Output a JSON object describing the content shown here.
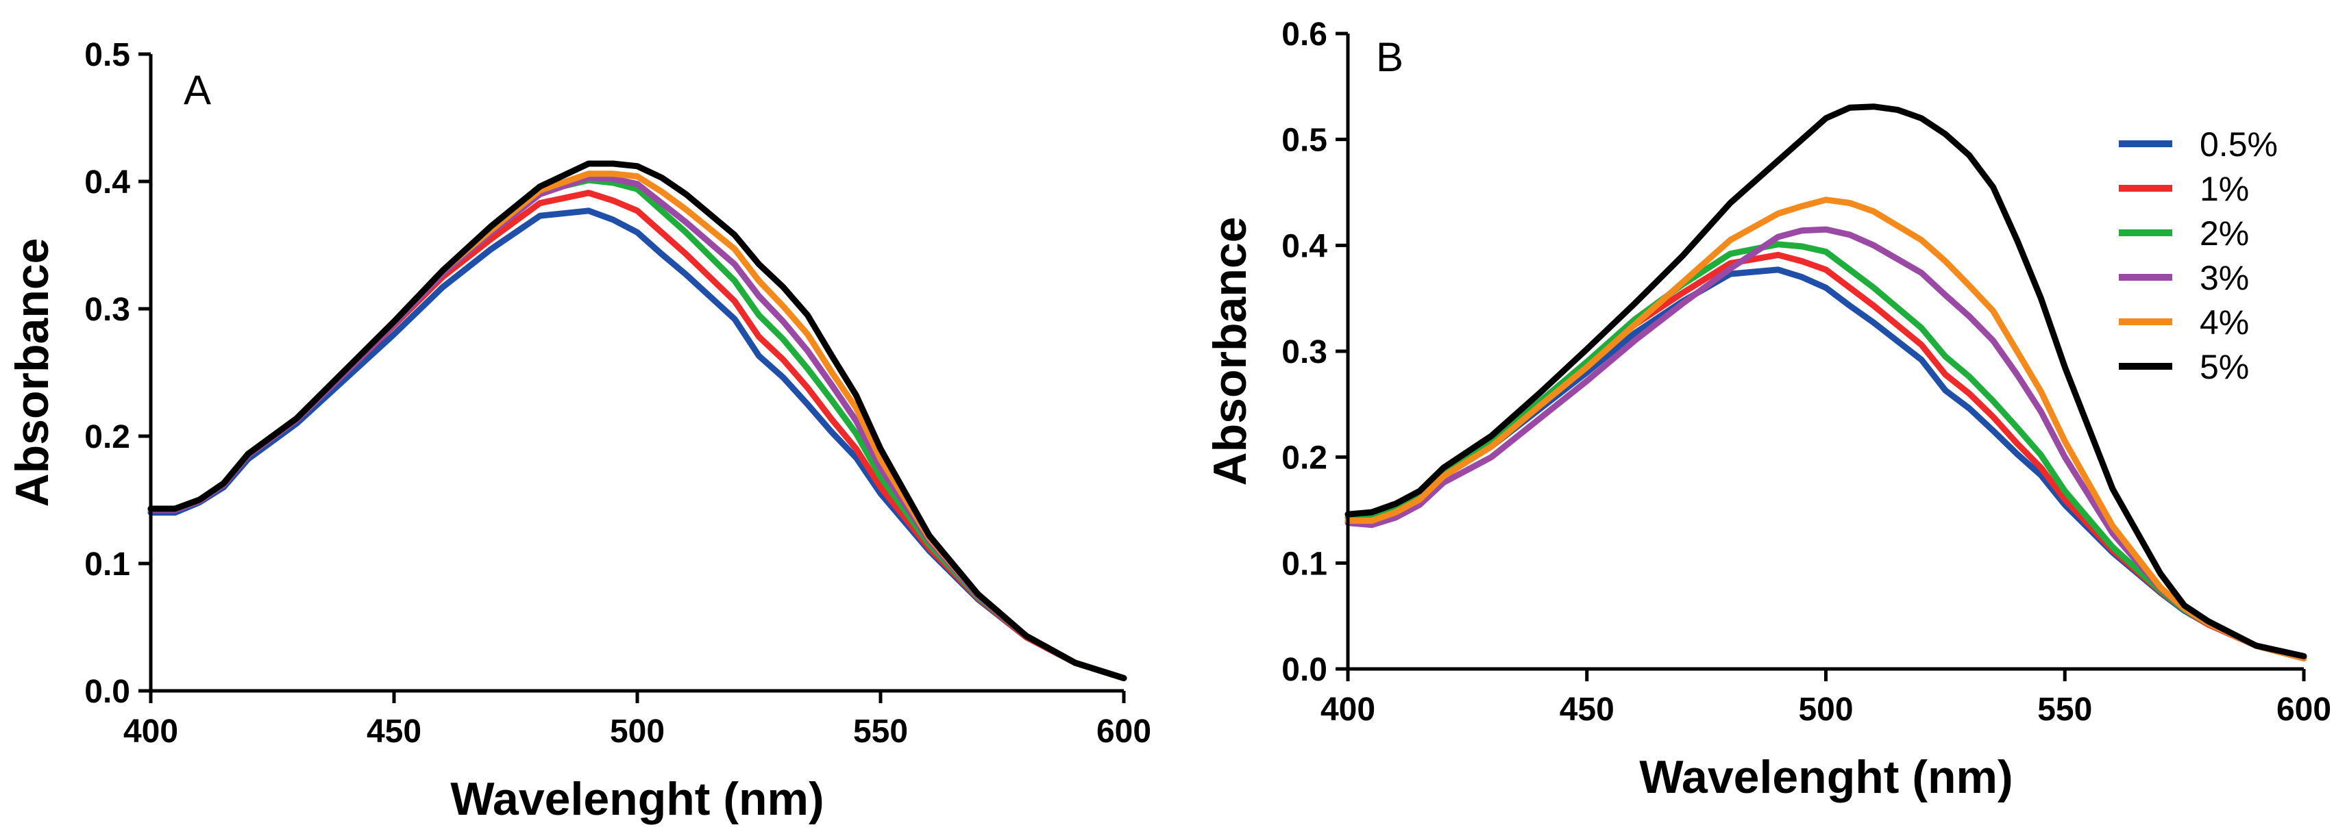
{
  "colors": {
    "0.5%": "#1f4fa8",
    "1%": "#ee2a2a",
    "2%": "#1fae3c",
    "3%": "#9a4aa4",
    "4%": "#f48a1c",
    "5%": "#000000"
  },
  "chart_data": [
    {
      "type": "line",
      "panel": "A",
      "xlabel": "Wavelenght (nm)",
      "ylabel": "Absorbance",
      "xlim": [
        400,
        600
      ],
      "ylim": [
        0,
        0.5
      ],
      "xticks": [
        "400",
        "450",
        "500",
        "550",
        "600"
      ],
      "yticks": [
        "0.0",
        "0.1",
        "0.2",
        "0.3",
        "0.4",
        "0.5"
      ],
      "series": [
        {
          "name": "0.5%",
          "color": "#1f4fa8",
          "x": [
            400,
            405,
            410,
            415,
            420,
            430,
            440,
            450,
            460,
            470,
            480,
            490,
            495,
            500,
            505,
            510,
            520,
            525,
            530,
            535,
            540,
            545,
            550,
            560,
            570,
            580,
            590,
            600
          ],
          "y": [
            0.14,
            0.14,
            0.148,
            0.16,
            0.182,
            0.21,
            0.245,
            0.28,
            0.317,
            0.347,
            0.373,
            0.377,
            0.37,
            0.36,
            0.343,
            0.327,
            0.292,
            0.263,
            0.246,
            0.225,
            0.203,
            0.183,
            0.155,
            0.11,
            0.072,
            0.042,
            0.022,
            0.01
          ]
        },
        {
          "name": "1%",
          "color": "#ee2a2a",
          "x": [
            400,
            405,
            410,
            415,
            420,
            430,
            440,
            450,
            460,
            470,
            480,
            490,
            495,
            500,
            505,
            510,
            520,
            525,
            530,
            535,
            540,
            545,
            550,
            560,
            570,
            580,
            590,
            600
          ],
          "y": [
            0.143,
            0.143,
            0.15,
            0.162,
            0.185,
            0.213,
            0.25,
            0.287,
            0.325,
            0.355,
            0.383,
            0.391,
            0.385,
            0.377,
            0.36,
            0.343,
            0.306,
            0.278,
            0.26,
            0.238,
            0.213,
            0.19,
            0.16,
            0.112,
            0.073,
            0.042,
            0.022,
            0.01
          ]
        },
        {
          "name": "2%",
          "color": "#1fae3c",
          "x": [
            400,
            405,
            410,
            415,
            420,
            430,
            440,
            450,
            460,
            470,
            480,
            490,
            495,
            500,
            505,
            510,
            520,
            525,
            530,
            535,
            540,
            545,
            550,
            560,
            570,
            580,
            590,
            600
          ],
          "y": [
            0.143,
            0.143,
            0.15,
            0.163,
            0.186,
            0.214,
            0.252,
            0.29,
            0.33,
            0.363,
            0.392,
            0.401,
            0.399,
            0.394,
            0.377,
            0.36,
            0.322,
            0.295,
            0.276,
            0.253,
            0.228,
            0.202,
            0.168,
            0.115,
            0.074,
            0.043,
            0.022,
            0.01
          ]
        },
        {
          "name": "3%",
          "color": "#9a4aa4",
          "x": [
            400,
            405,
            410,
            415,
            420,
            430,
            440,
            450,
            460,
            470,
            480,
            490,
            495,
            500,
            505,
            510,
            520,
            525,
            530,
            535,
            540,
            545,
            550,
            560,
            570,
            580,
            590,
            600
          ],
          "y": [
            0.142,
            0.142,
            0.149,
            0.162,
            0.185,
            0.213,
            0.25,
            0.288,
            0.328,
            0.36,
            0.39,
            0.403,
            0.402,
            0.398,
            0.383,
            0.368,
            0.335,
            0.31,
            0.29,
            0.267,
            0.24,
            0.212,
            0.175,
            0.118,
            0.075,
            0.043,
            0.022,
            0.01
          ]
        },
        {
          "name": "4%",
          "color": "#f48a1c",
          "x": [
            400,
            405,
            410,
            415,
            420,
            430,
            440,
            450,
            460,
            470,
            480,
            490,
            495,
            500,
            505,
            510,
            520,
            525,
            530,
            535,
            540,
            545,
            550,
            560,
            570,
            580,
            590,
            600
          ],
          "y": [
            0.143,
            0.143,
            0.15,
            0.163,
            0.186,
            0.214,
            0.252,
            0.29,
            0.33,
            0.362,
            0.393,
            0.406,
            0.406,
            0.404,
            0.392,
            0.378,
            0.347,
            0.322,
            0.302,
            0.28,
            0.25,
            0.222,
            0.182,
            0.12,
            0.076,
            0.043,
            0.022,
            0.01
          ]
        },
        {
          "name": "5%",
          "color": "#000000",
          "x": [
            400,
            405,
            410,
            415,
            420,
            430,
            440,
            450,
            460,
            470,
            480,
            490,
            495,
            500,
            505,
            510,
            520,
            525,
            530,
            535,
            540,
            545,
            550,
            560,
            570,
            580,
            590,
            600
          ],
          "y": [
            0.143,
            0.143,
            0.15,
            0.163,
            0.186,
            0.214,
            0.252,
            0.29,
            0.33,
            0.365,
            0.396,
            0.414,
            0.414,
            0.412,
            0.403,
            0.39,
            0.358,
            0.335,
            0.317,
            0.295,
            0.263,
            0.232,
            0.19,
            0.122,
            0.076,
            0.043,
            0.022,
            0.01
          ]
        }
      ]
    },
    {
      "type": "line",
      "panel": "B",
      "xlabel": "Wavelenght (nm)",
      "ylabel": "Absorbance",
      "xlim": [
        400,
        600
      ],
      "ylim": [
        0,
        0.6
      ],
      "xticks": [
        "400",
        "450",
        "500",
        "550",
        "600"
      ],
      "yticks": [
        "0.0",
        "0.1",
        "0.2",
        "0.3",
        "0.4",
        "0.5",
        "0.6"
      ],
      "legend": [
        "0.5%",
        "1%",
        "2%",
        "3%",
        "4%",
        "5%"
      ],
      "legend_position": "top-right",
      "series": [
        {
          "name": "0.5%",
          "color": "#1f4fa8",
          "x": [
            400,
            405,
            410,
            415,
            420,
            430,
            440,
            450,
            460,
            470,
            480,
            490,
            495,
            500,
            505,
            510,
            520,
            525,
            530,
            535,
            540,
            545,
            550,
            560,
            570,
            575,
            580,
            590,
            600
          ],
          "y": [
            0.14,
            0.14,
            0.148,
            0.16,
            0.182,
            0.21,
            0.245,
            0.28,
            0.317,
            0.347,
            0.373,
            0.377,
            0.37,
            0.36,
            0.343,
            0.327,
            0.292,
            0.263,
            0.246,
            0.225,
            0.203,
            0.183,
            0.155,
            0.11,
            0.072,
            0.055,
            0.042,
            0.022,
            0.01
          ]
        },
        {
          "name": "1%",
          "color": "#ee2a2a",
          "x": [
            400,
            405,
            410,
            415,
            420,
            430,
            440,
            450,
            460,
            470,
            480,
            490,
            495,
            500,
            505,
            510,
            520,
            525,
            530,
            535,
            540,
            545,
            550,
            560,
            570,
            575,
            580,
            590,
            600
          ],
          "y": [
            0.143,
            0.143,
            0.15,
            0.162,
            0.185,
            0.213,
            0.25,
            0.287,
            0.325,
            0.355,
            0.383,
            0.391,
            0.385,
            0.377,
            0.36,
            0.343,
            0.306,
            0.278,
            0.26,
            0.238,
            0.213,
            0.19,
            0.16,
            0.112,
            0.073,
            0.056,
            0.042,
            0.022,
            0.01
          ]
        },
        {
          "name": "2%",
          "color": "#1fae3c",
          "x": [
            400,
            405,
            410,
            415,
            420,
            430,
            440,
            450,
            460,
            470,
            480,
            490,
            495,
            500,
            505,
            510,
            520,
            525,
            530,
            535,
            540,
            545,
            550,
            560,
            570,
            575,
            580,
            590,
            600
          ],
          "y": [
            0.143,
            0.143,
            0.15,
            0.163,
            0.186,
            0.214,
            0.252,
            0.29,
            0.33,
            0.363,
            0.392,
            0.401,
            0.399,
            0.394,
            0.377,
            0.36,
            0.322,
            0.295,
            0.276,
            0.253,
            0.228,
            0.202,
            0.168,
            0.115,
            0.074,
            0.056,
            0.043,
            0.022,
            0.01
          ]
        },
        {
          "name": "3%",
          "color": "#9a4aa4",
          "x": [
            400,
            405,
            410,
            415,
            420,
            430,
            440,
            450,
            460,
            470,
            480,
            490,
            495,
            500,
            505,
            510,
            520,
            525,
            530,
            535,
            540,
            545,
            550,
            560,
            570,
            575,
            580,
            590,
            600
          ],
          "y": [
            0.138,
            0.136,
            0.143,
            0.155,
            0.176,
            0.2,
            0.236,
            0.272,
            0.31,
            0.345,
            0.378,
            0.408,
            0.414,
            0.415,
            0.41,
            0.4,
            0.374,
            0.353,
            0.333,
            0.31,
            0.278,
            0.243,
            0.2,
            0.128,
            0.076,
            0.057,
            0.043,
            0.022,
            0.01
          ]
        },
        {
          "name": "4%",
          "color": "#f48a1c",
          "x": [
            400,
            405,
            410,
            415,
            420,
            430,
            440,
            450,
            460,
            470,
            480,
            490,
            495,
            500,
            505,
            510,
            520,
            525,
            530,
            535,
            540,
            545,
            550,
            560,
            570,
            575,
            580,
            590,
            600
          ],
          "y": [
            0.14,
            0.14,
            0.148,
            0.16,
            0.182,
            0.21,
            0.248,
            0.285,
            0.325,
            0.365,
            0.405,
            0.43,
            0.437,
            0.443,
            0.44,
            0.432,
            0.405,
            0.385,
            0.362,
            0.338,
            0.3,
            0.262,
            0.215,
            0.135,
            0.077,
            0.057,
            0.043,
            0.022,
            0.01
          ]
        },
        {
          "name": "5%",
          "color": "#000000",
          "x": [
            400,
            405,
            410,
            415,
            420,
            430,
            440,
            450,
            460,
            470,
            480,
            490,
            495,
            500,
            505,
            510,
            515,
            520,
            525,
            530,
            535,
            540,
            545,
            550,
            560,
            570,
            575,
            580,
            590,
            600
          ],
          "y": [
            0.146,
            0.148,
            0.156,
            0.168,
            0.19,
            0.22,
            0.26,
            0.302,
            0.345,
            0.39,
            0.44,
            0.48,
            0.5,
            0.52,
            0.53,
            0.531,
            0.528,
            0.52,
            0.505,
            0.485,
            0.455,
            0.405,
            0.35,
            0.285,
            0.17,
            0.09,
            0.06,
            0.045,
            0.022,
            0.012
          ]
        }
      ]
    }
  ]
}
